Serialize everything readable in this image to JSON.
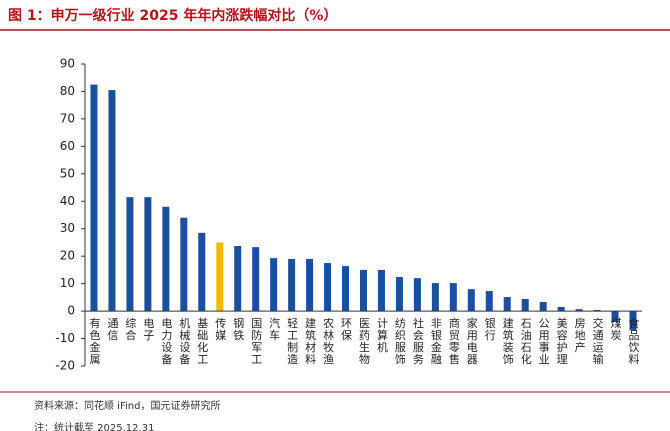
{
  "chart_data": {
    "type": "bar",
    "title": "图 1：申万一级行业 2025 年年内涨跌幅对比（%）",
    "categories": [
      "有色金属",
      "通信",
      "综合",
      "电子",
      "电力设备",
      "机械设备",
      "基础化工",
      "传媒",
      "钢铁",
      "国防军工",
      "汽车",
      "轻工制造",
      "建筑材料",
      "农林牧渔",
      "环保",
      "医药生物",
      "计算机",
      "纺织服饰",
      "社会服务",
      "非银金融",
      "商贸零售",
      "家用电器",
      "银行",
      "建筑装饰",
      "石油石化",
      "公用事业",
      "美容护理",
      "房地产",
      "交通运输",
      "煤炭",
      "食品饮料"
    ],
    "values": [
      82.5,
      80.5,
      41.5,
      41.5,
      38,
      34,
      28.5,
      25,
      23.7,
      23.3,
      19.3,
      19,
      19,
      17.5,
      16.4,
      15,
      15,
      12.4,
      12,
      10.2,
      10.2,
      8,
      7.3,
      5.1,
      4.4,
      3.3,
      1.5,
      0.7,
      0.4,
      -4,
      -7
    ],
    "colors": [
      "#1a4fa0",
      "#1a4fa0",
      "#1a4fa0",
      "#1a4fa0",
      "#1a4fa0",
      "#1a4fa0",
      "#1a4fa0",
      "#f5b800",
      "#1a4fa0",
      "#1a4fa0",
      "#1a4fa0",
      "#1a4fa0",
      "#1a4fa0",
      "#1a4fa0",
      "#1a4fa0",
      "#1a4fa0",
      "#1a4fa0",
      "#1a4fa0",
      "#1a4fa0",
      "#1a4fa0",
      "#1a4fa0",
      "#1a4fa0",
      "#1a4fa0",
      "#1a4fa0",
      "#1a4fa0",
      "#1a4fa0",
      "#1a4fa0",
      "#1a4fa0",
      "#1a4fa0",
      "#1a4fa0",
      "#1a4fa0"
    ],
    "ylim": [
      -20,
      90
    ],
    "yticks": [
      -20,
      -10,
      0,
      10,
      20,
      30,
      40,
      50,
      60,
      70,
      80,
      90
    ],
    "grid": false,
    "source": "资料来源：同花顺 iFind，国元证券研究所",
    "note": "注：统计截至 2025.12.31"
  }
}
